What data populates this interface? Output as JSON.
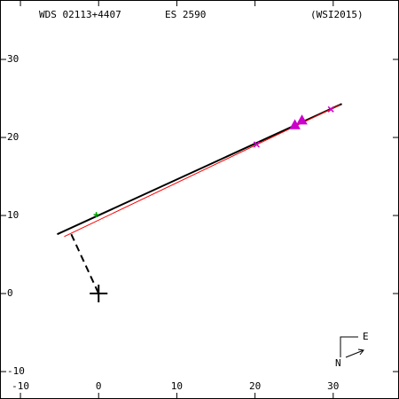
{
  "chart_data": {
    "type": "scatter",
    "labels": [
      "WDS 02113+4407",
      "ES 2590",
      "(WSI2015)"
    ],
    "xlim": [
      -12.5,
      38.3
    ],
    "ylim": [
      -13.4,
      37.5
    ],
    "xticks": [
      -10,
      0,
      10,
      20,
      30
    ],
    "yticks": [
      -10,
      0,
      10,
      20,
      30
    ],
    "series": [
      {
        "style": "line",
        "color": "#000000",
        "x": [
          -5.3,
          31.1
        ],
        "values": [
          7.6,
          24.3
        ]
      },
      {
        "style": "line",
        "color": "#ff0000",
        "x": [
          -4.4,
          30.9
        ],
        "values": [
          7.3,
          24.2
        ]
      },
      {
        "style": "dashed",
        "color": "#000000",
        "x": [
          -3.5,
          0
        ],
        "values": [
          7.6,
          0
        ]
      },
      {
        "style": "plus",
        "color": "#00a000",
        "x": [
          -0.3
        ],
        "values": [
          10.1
        ]
      },
      {
        "style": "cross",
        "color": "#cc00cc",
        "x": [
          20.2,
          29.7
        ],
        "values": [
          19.1,
          23.6
        ]
      },
      {
        "style": "triangle",
        "color": "#cc00cc",
        "x": [
          25.1,
          26.0
        ],
        "values": [
          21.6,
          22.2
        ]
      },
      {
        "style": "origin",
        "color": "#000000",
        "x": [
          0
        ],
        "values": [
          0
        ]
      }
    ],
    "compass": {
      "east": "E",
      "north": "N"
    }
  }
}
